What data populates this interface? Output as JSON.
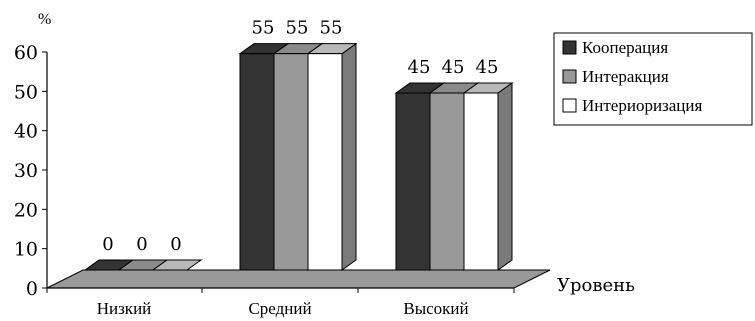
{
  "chart_data": {
    "type": "bar",
    "categories": [
      "Низкий",
      "Средний",
      "Высокий"
    ],
    "series": [
      {
        "name": "Кооперация",
        "values": [
          0,
          55,
          45
        ],
        "color": "#333333"
      },
      {
        "name": "Интеракция",
        "values": [
          0,
          55,
          45
        ],
        "color": "#999999"
      },
      {
        "name": "Интериоризация",
        "values": [
          0,
          55,
          45
        ],
        "color": "#ffffff"
      }
    ],
    "ylim": [
      0,
      60
    ],
    "yticks": [
      0,
      10,
      20,
      30,
      40,
      50,
      60
    ],
    "y_unit": "%",
    "xlabel": "Уровень",
    "legend_position": "top-right",
    "floor_color": "#999999",
    "render_3d": true
  }
}
